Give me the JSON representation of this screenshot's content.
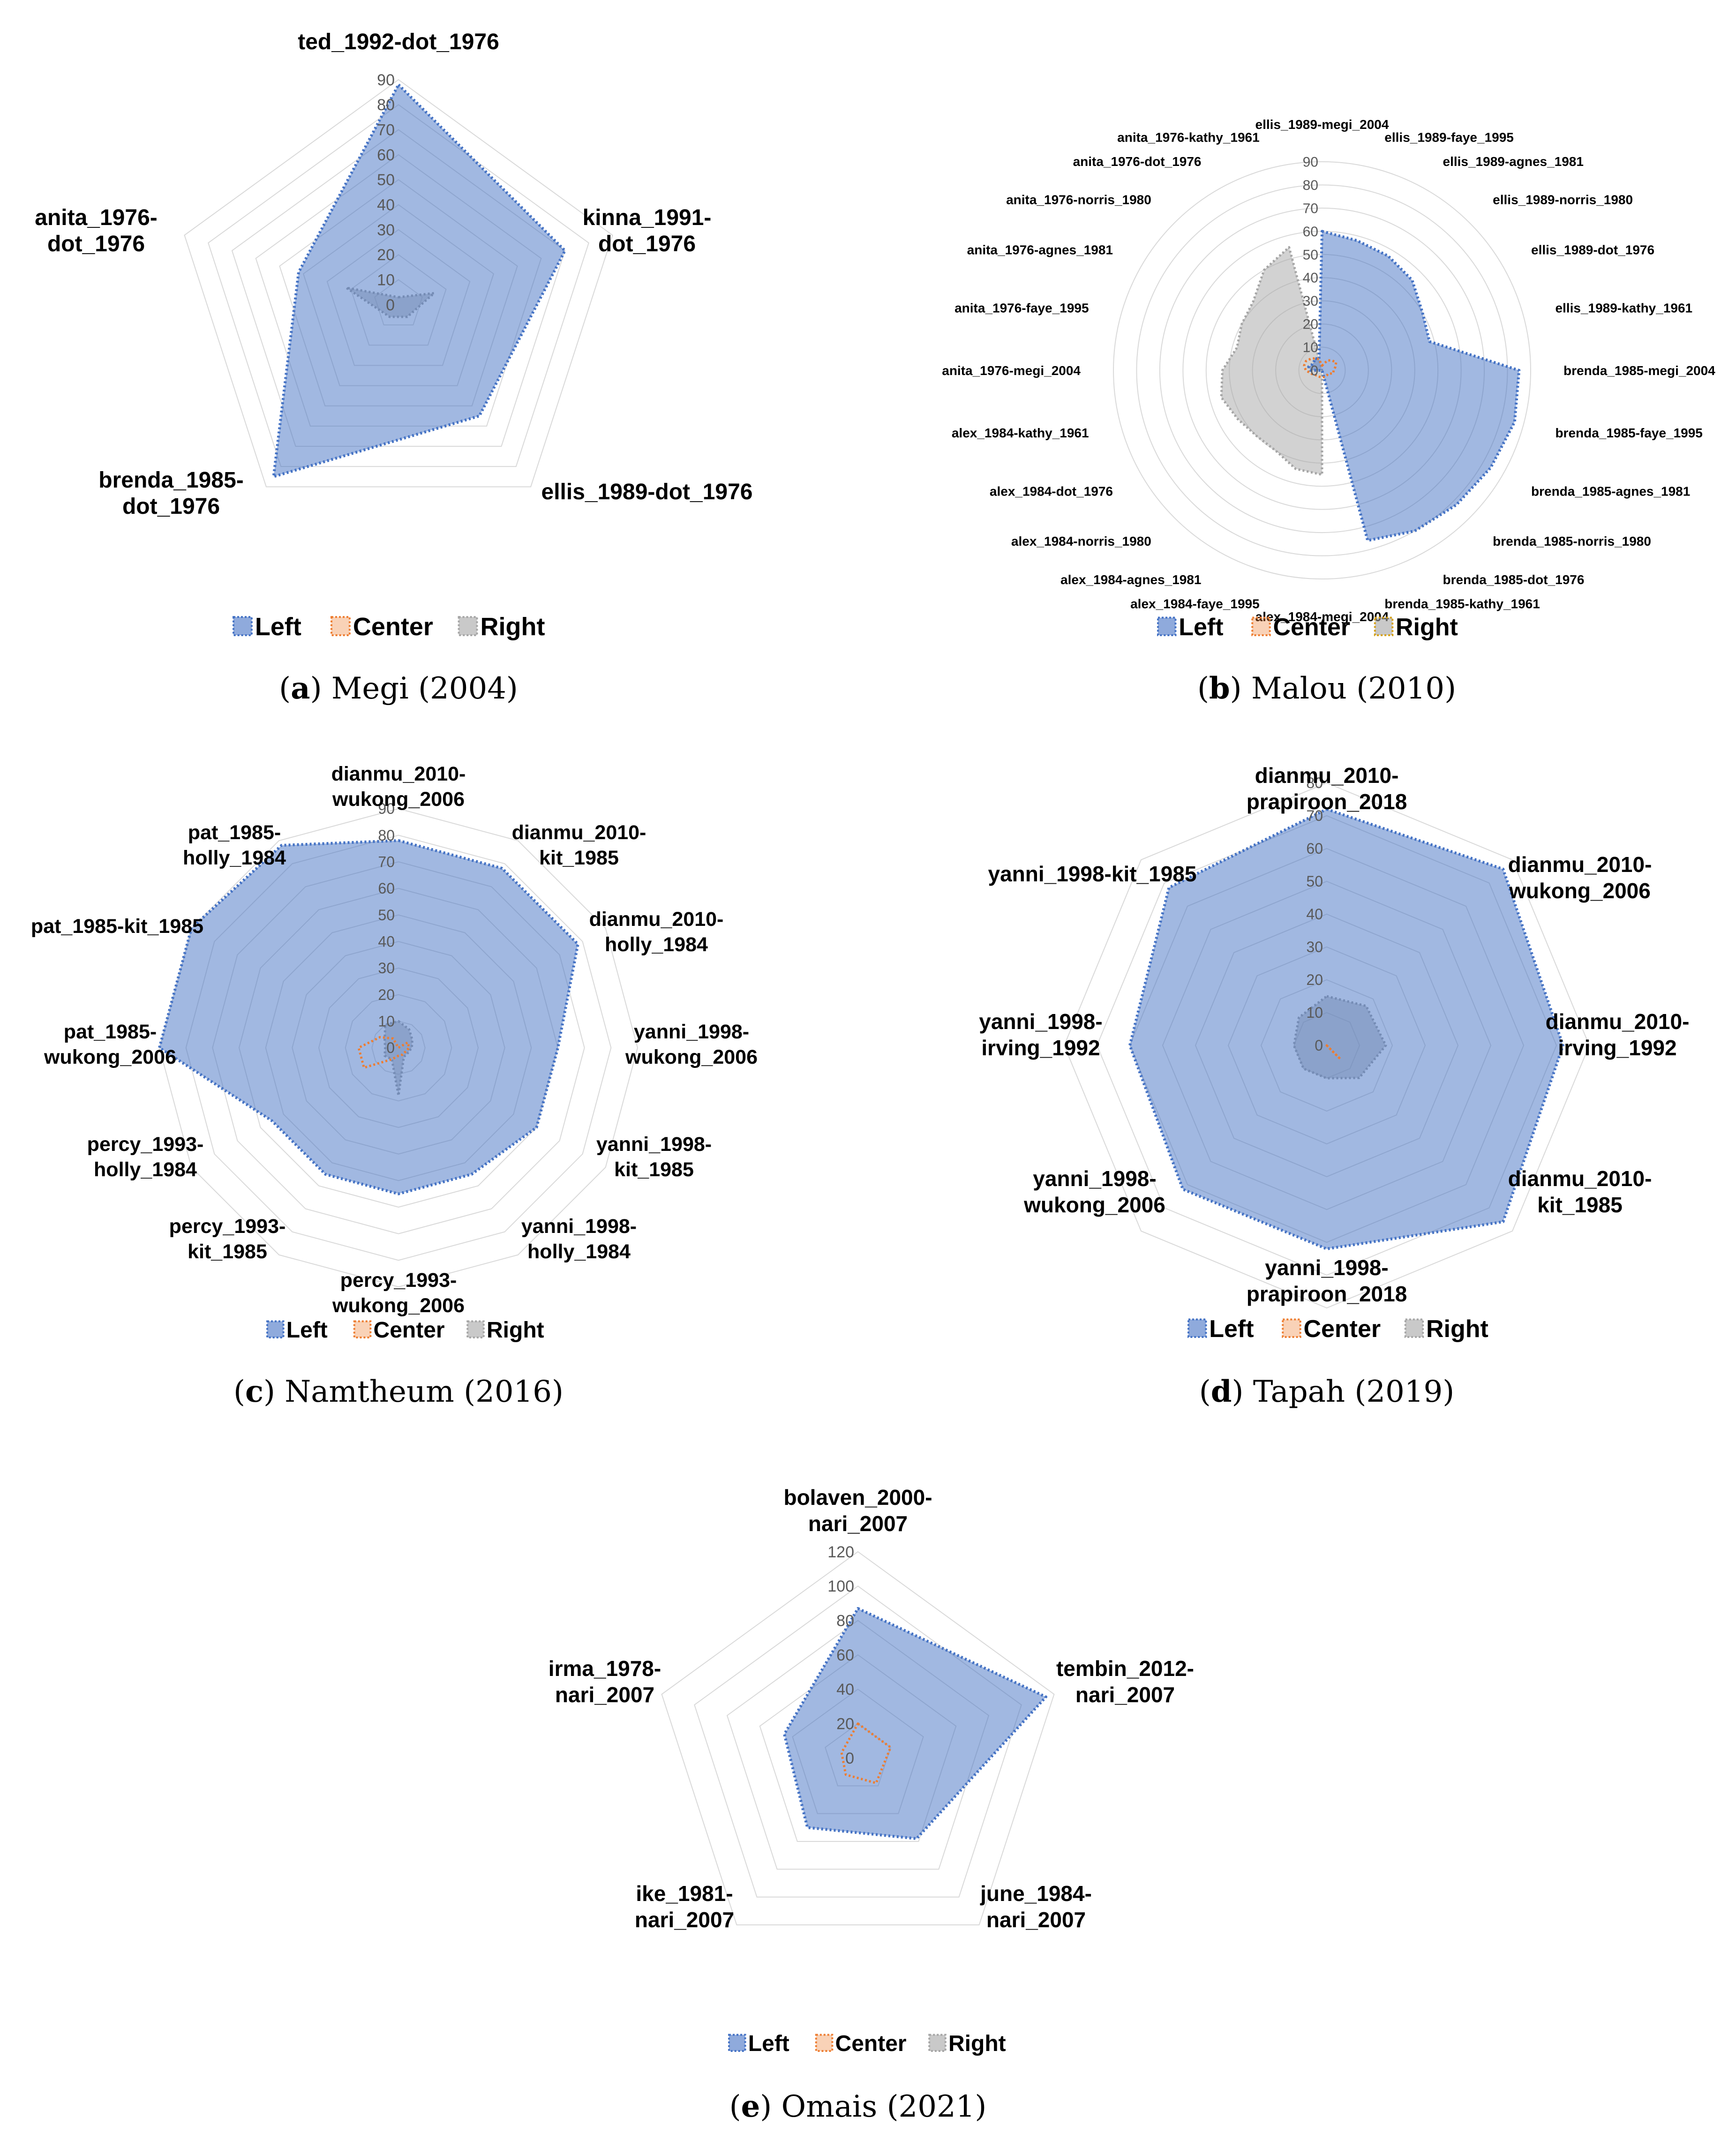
{
  "colors": {
    "left": "#4472c4",
    "center": "#ed7d31",
    "right": "#a5a5a5",
    "malou_right_border": "#d4a017",
    "grid": "#d9d9d9"
  },
  "chart_data": [
    {
      "id": "a",
      "type": "radar",
      "caption_letter": "a",
      "caption_text": " Megi (2004)",
      "rmax": 90,
      "ticks": [
        "0",
        "10",
        "20",
        "30",
        "40",
        "50",
        "60",
        "70",
        "80",
        "90"
      ],
      "axes": [
        "ted_1992-dot_1976",
        "kinna_1991-dot_1976",
        "ellis_1989-dot_1976",
        "brenda_1985-dot_1976",
        "anita_1976-dot_1976"
      ],
      "series": [
        {
          "name": "Left",
          "values": [
            88,
            70,
            55,
            85,
            42
          ]
        },
        {
          "name": "Center",
          "values": [
            0,
            0,
            0,
            0,
            0
          ]
        },
        {
          "name": "Right",
          "values": [
            3,
            15,
            6,
            6,
            22
          ]
        }
      ],
      "legend": [
        "Left",
        "Center",
        "Right"
      ]
    },
    {
      "id": "b",
      "type": "radar",
      "caption_letter": "b",
      "caption_text": " Malou (2010)",
      "rmax": 90,
      "ticks": [
        "0",
        "10",
        "20",
        "30",
        "40",
        "50",
        "60",
        "70",
        "80",
        "90"
      ],
      "axes": [
        "ellis_1989-megi_2004",
        "ellis_1989-faye_1995",
        "ellis_1989-agnes_1981",
        "ellis_1989-norris_1980",
        "ellis_1989-dot_1976",
        "ellis_1989-kathy_1961",
        "brenda_1985-megi_2004",
        "brenda_1985-faye_1995",
        "brenda_1985-agnes_1981",
        "brenda_1985-norris_1980",
        "brenda_1985-dot_1976",
        "brenda_1985-kathy_1961",
        "alex_1984-megi_2004",
        "alex_1984-faye_1995",
        "alex_1984-agnes_1981",
        "alex_1984-norris_1980",
        "alex_1984-dot_1976",
        "alex_1984-kathy_1961",
        "anita_1976-megi_2004",
        "anita_1976-faye_1995",
        "anita_1976-agnes_1981",
        "anita_1976-norris_1980",
        "anita_1976-dot_1976",
        "anita_1976-kathy_1961"
      ],
      "series": [
        {
          "name": "Left",
          "values": [
            60,
            58,
            57,
            55,
            50,
            48,
            85,
            86,
            84,
            82,
            80,
            76,
            0,
            0,
            0,
            0,
            0,
            0,
            5,
            6,
            5,
            5,
            6,
            5
          ]
        },
        {
          "name": "Center",
          "values": [
            2,
            3,
            5,
            6,
            7,
            6,
            5,
            5,
            3,
            3,
            3,
            3,
            3,
            3,
            3,
            3,
            4,
            5,
            7,
            8,
            8,
            7,
            6,
            5
          ]
        },
        {
          "name": "Right",
          "values": [
            0,
            0,
            0,
            0,
            0,
            0,
            0,
            0,
            0,
            0,
            0,
            0,
            45,
            44,
            40,
            40,
            42,
            45,
            43,
            38,
            40,
            42,
            50,
            55
          ]
        }
      ],
      "legend": [
        "Left",
        "Center",
        "Right"
      ]
    },
    {
      "id": "c",
      "type": "radar",
      "caption_letter": "c",
      "caption_text": " Namtheum (2016)",
      "rmax": 90,
      "ticks": [
        "0",
        "10",
        "20",
        "30",
        "40",
        "50",
        "60",
        "70",
        "80",
        "90"
      ],
      "axes": [
        "dianmu_2010-wukong_2006",
        "dianmu_2010-kit_1985",
        "dianmu_2010-holly_1984",
        "yanni_1998-wukong_2006",
        "yanni_1998-kit_1985",
        "yanni_1998-holly_1984",
        "percy_1993-wukong_2006",
        "percy_1993-kit_1985",
        "percy_1993-holly_1984",
        "pat_1985-wukong_2006",
        "pat_1985-kit_1985",
        "pat_1985-holly_1984"
      ],
      "series": [
        {
          "name": "Left",
          "values": [
            78,
            78,
            78,
            60,
            60,
            55,
            55,
            55,
            55,
            90,
            90,
            88
          ]
        },
        {
          "name": "Center",
          "values": [
            0,
            0,
            4,
            4,
            3,
            3,
            3,
            5,
            15,
            15,
            8,
            4
          ]
        },
        {
          "name": "Right",
          "values": [
            10,
            8,
            6,
            5,
            4,
            4,
            18,
            5,
            6,
            5,
            6,
            10
          ]
        }
      ],
      "legend": [
        "Left",
        "Center",
        "Right"
      ]
    },
    {
      "id": "d",
      "type": "radar",
      "caption_letter": "d",
      "caption_text": " Tapah (2019)",
      "rmax": 80,
      "ticks": [
        "0",
        "10",
        "20",
        "30",
        "40",
        "50",
        "60",
        "70",
        "80"
      ],
      "axes": [
        "dianmu_2010-prapiroon_2018",
        "dianmu_2010-wukong_2006",
        "dianmu_2010-irving_1992",
        "dianmu_2010-kit_1985",
        "yanni_1998-prapiroon_2018",
        "yanni_1998-wukong_2006",
        "yanni_1998-irving_1992",
        "yanni_1998-kit_1985"
      ],
      "series": [
        {
          "name": "Left",
          "values": [
            72,
            76,
            72,
            76,
            62,
            62,
            60,
            68
          ]
        },
        {
          "name": "Center",
          "values": [
            0,
            0,
            0,
            6,
            0,
            0,
            0,
            0
          ]
        },
        {
          "name": "Right",
          "values": [
            15,
            17,
            18,
            14,
            10,
            10,
            10,
            12
          ]
        }
      ],
      "legend": [
        "Left",
        "Center",
        "Right"
      ]
    },
    {
      "id": "e",
      "type": "radar",
      "caption_letter": "e",
      "caption_text": " Omais (2021)",
      "rmax": 120,
      "ticks": [
        "0",
        "20",
        "40",
        "60",
        "80",
        "100",
        "120"
      ],
      "axes": [
        "bolaven_2000-nari_2007",
        "tembin_2012-nari_2007",
        "june_1984-nari_2007",
        "ike_1981-nari_2007",
        "irma_1978-nari_2007"
      ],
      "series": [
        {
          "name": "Left",
          "values": [
            87,
            115,
            58,
            50,
            45
          ]
        },
        {
          "name": "Center",
          "values": [
            20,
            20,
            18,
            12,
            10
          ]
        },
        {
          "name": "Right",
          "values": [
            0,
            0,
            0,
            0,
            0
          ]
        }
      ],
      "legend": [
        "Left",
        "Center",
        "Right"
      ]
    }
  ]
}
